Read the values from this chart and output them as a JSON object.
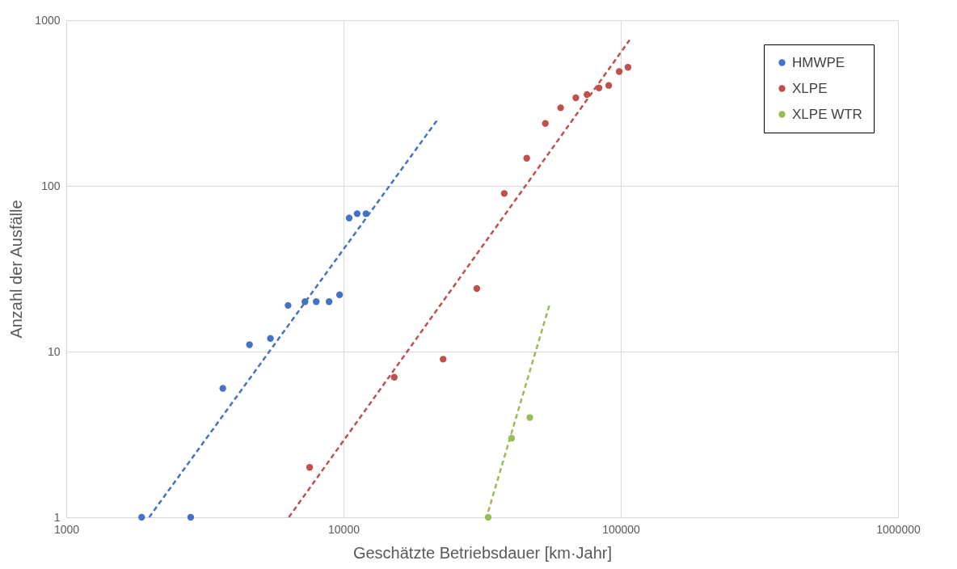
{
  "chart_data": {
    "type": "scatter",
    "xlabel": "Geschätzte Betriebsdauer [km·Jahr]",
    "ylabel": "Anzahl der Ausfälle",
    "log": "xy",
    "grid": true,
    "legend": "top right",
    "xlim": [
      1000,
      1000000
    ],
    "xticks": [
      1000,
      10000,
      100000,
      1000000
    ],
    "ylim": [
      1,
      1000
    ],
    "yticks": [
      1,
      10,
      100,
      1000
    ],
    "series": [
      {
        "name": "HMWPE",
        "marker": "circle",
        "color": "#4472c4",
        "x": [
          1870,
          2810,
          3670,
          4580,
          5450,
          6310,
          7260,
          7970,
          8870,
          9680,
          10480,
          11200,
          12050
        ],
        "values": [
          1,
          1,
          6,
          11,
          12,
          19,
          20,
          20,
          20,
          22,
          64,
          68,
          68
        ]
      },
      {
        "name": "XLPE",
        "marker": "circle",
        "color": "#c0504d",
        "x": [
          7550,
          15240,
          22870,
          30260,
          38000,
          45800,
          53450,
          60700,
          68870,
          75550,
          83500,
          90500,
          98700,
          106200
        ],
        "values": [
          2,
          7,
          9,
          24,
          90,
          147,
          238,
          296,
          340,
          356,
          390,
          404,
          490,
          520
        ]
      },
      {
        "name": "XLPE WTR",
        "marker": "circle",
        "color": "#9bbb59",
        "x": [
          33250,
          40380,
          47000
        ],
        "values": [
          1,
          3,
          4
        ]
      },
      {
        "type": "line",
        "marker": "none",
        "color": "#4472c4",
        "line_style": "dashed",
        "x": [
          1990,
          21980
        ],
        "values": [
          1,
          255
        ]
      },
      {
        "type": "line",
        "marker": "none",
        "color": "#c0504d",
        "line_style": "dashed",
        "x": [
          6350,
          107600
        ],
        "values": [
          1,
          759
        ]
      },
      {
        "type": "line",
        "marker": "none",
        "color": "#9bbb59",
        "line_style": "dashed",
        "x": [
          33250,
          55600
        ],
        "values": [
          1.08,
          19.7
        ]
      }
    ]
  }
}
